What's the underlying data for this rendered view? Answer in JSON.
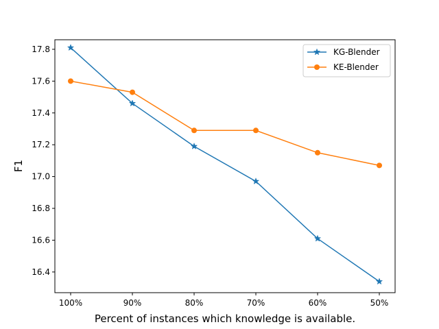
{
  "chart_data": {
    "type": "line",
    "title": "",
    "xlabel": "Percent of instances which knowledge is available.",
    "ylabel": "F1",
    "categories": [
      "100%",
      "90%",
      "80%",
      "70%",
      "60%",
      "50%"
    ],
    "ylim": [
      16.27,
      17.86
    ],
    "yticks": [
      "16.4",
      "16.6",
      "16.8",
      "17.0",
      "17.2",
      "17.4",
      "17.6",
      "17.8"
    ],
    "grid": false,
    "legend_position": "top-right",
    "series": [
      {
        "name": "KG-Blender",
        "values": [
          17.81,
          17.46,
          17.19,
          16.97,
          16.61,
          16.34
        ],
        "color": "#1f77b4",
        "marker": "star"
      },
      {
        "name": "KE-Blender",
        "values": [
          17.6,
          17.53,
          17.29,
          17.29,
          17.15,
          17.07
        ],
        "color": "#ff7f0e",
        "marker": "circle"
      }
    ]
  }
}
